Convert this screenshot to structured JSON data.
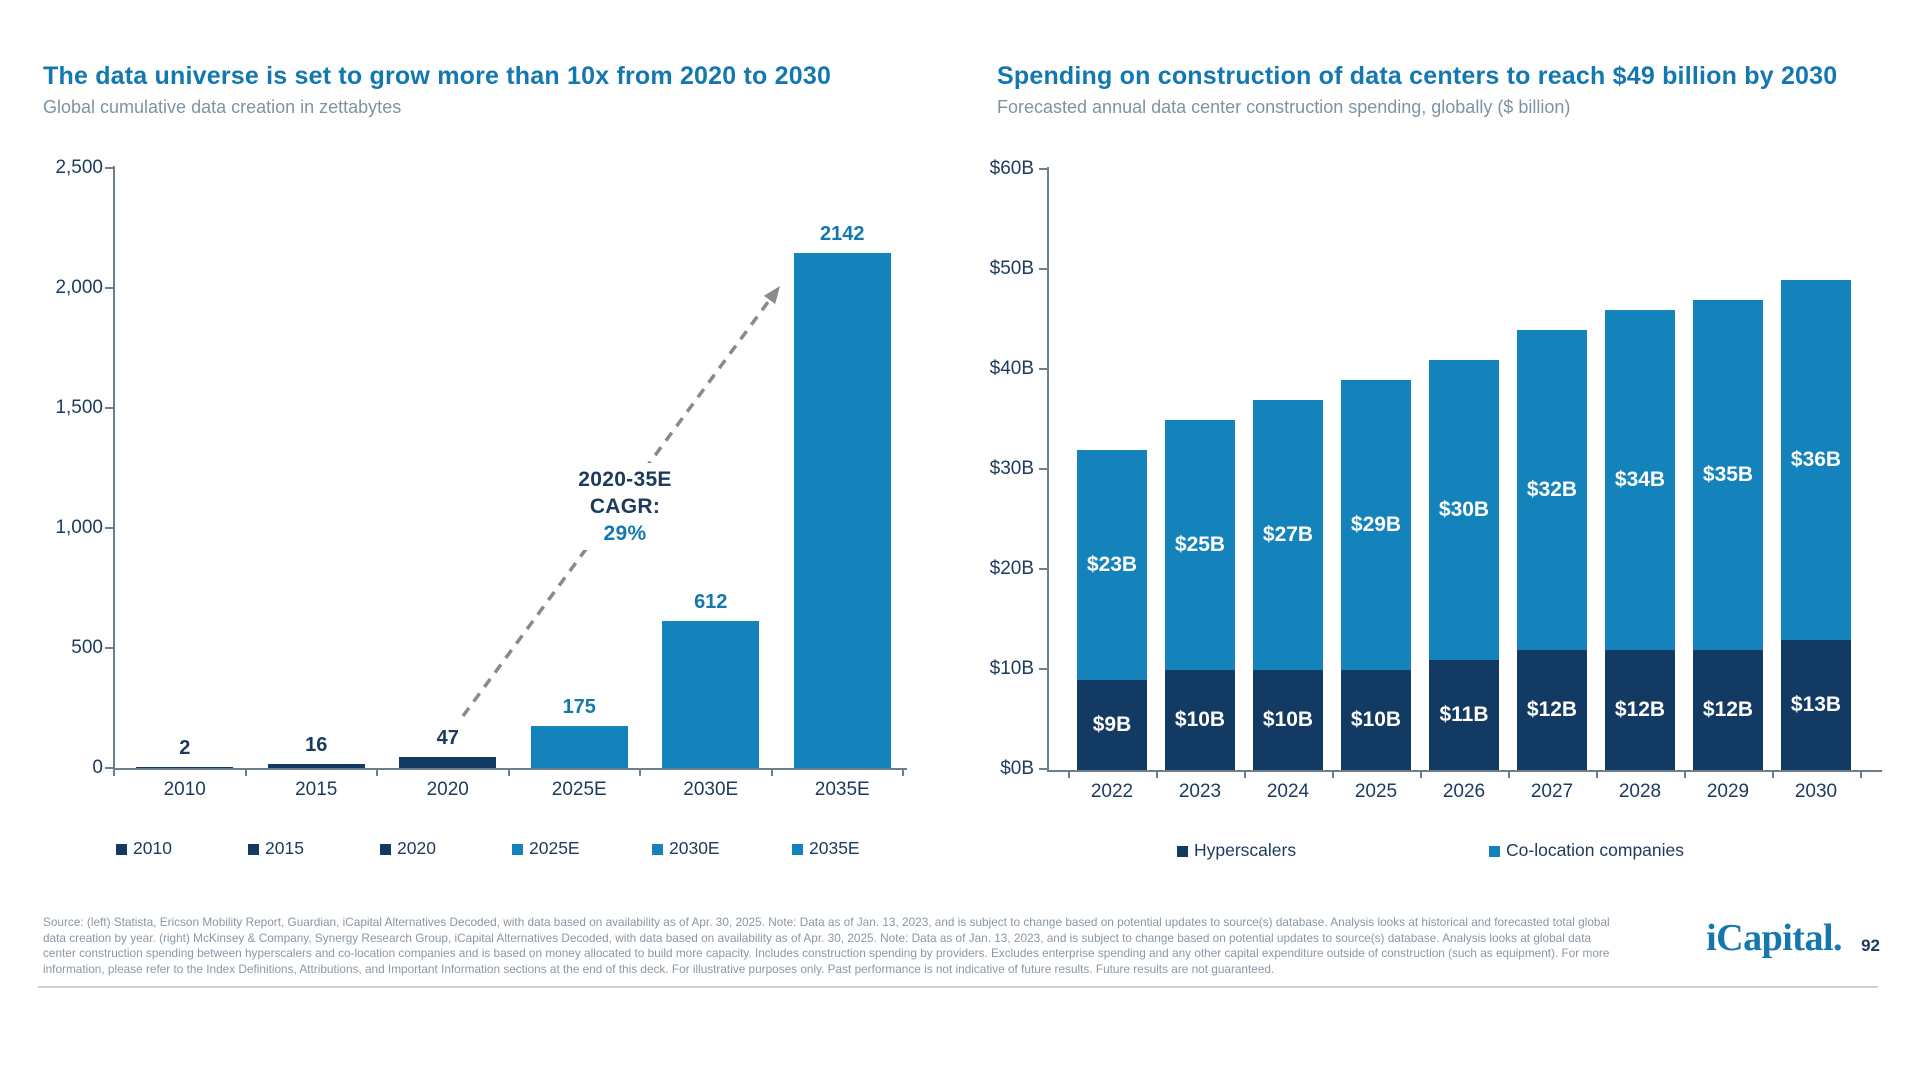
{
  "chart_data": [
    {
      "type": "bar",
      "title": "The data universe is set to grow more than 10x from 2020 to 2030",
      "subtitle": "Global cumulative data creation in zettabytes",
      "categories": [
        "2010",
        "2015",
        "2020",
        "2025E",
        "2030E",
        "2035E"
      ],
      "values": [
        2,
        16,
        47,
        175,
        612,
        2142
      ],
      "value_labels": [
        "2",
        "16",
        "47",
        "175",
        "612",
        "2142"
      ],
      "bar_colors": [
        "#133A63",
        "#133A63",
        "#133A63",
        "#1583BB",
        "#1583BB",
        "#1583BB"
      ],
      "label_colors": [
        "#1C3A5E",
        "#1C3A5E",
        "#1C3A5E",
        "#1478B0",
        "#1478B0",
        "#1478B0"
      ],
      "ylim": [
        0,
        2500
      ],
      "yticks": [
        "2,500",
        "2,000",
        "1,500",
        "1,000",
        "500",
        "0"
      ],
      "grid": false,
      "legend_position": "bottom",
      "legend": [
        {
          "label": "2010",
          "color": "#133A63"
        },
        {
          "label": "2015",
          "color": "#133A63"
        },
        {
          "label": "2020",
          "color": "#133A63"
        },
        {
          "label": "2025E",
          "color": "#1583BB"
        },
        {
          "label": "2030E",
          "color": "#1583BB"
        },
        {
          "label": "2035E",
          "color": "#1583BB"
        }
      ],
      "annotation": {
        "line1": "2020-35E",
        "line2": "CAGR:",
        "value": "29%"
      }
    },
    {
      "type": "stacked-bar",
      "title": "Spending on construction of data centers to reach $49 billion by 2030",
      "subtitle": "Forecasted annual data center construction spending, globally ($ billion)",
      "categories": [
        "2022",
        "2023",
        "2024",
        "2025",
        "2026",
        "2027",
        "2028",
        "2029",
        "2030"
      ],
      "series": [
        {
          "name": "Hyperscalers",
          "color": "#133A63",
          "values": [
            9,
            10,
            10,
            10,
            11,
            12,
            12,
            12,
            13
          ],
          "labels": [
            "$9B",
            "$10B",
            "$10B",
            "$10B",
            "$11B",
            "$12B",
            "$12B",
            "$12B",
            "$13B"
          ]
        },
        {
          "name": "Co-location companies",
          "color": "#1583BB",
          "values": [
            23,
            25,
            27,
            29,
            30,
            32,
            34,
            35,
            36
          ],
          "labels": [
            "$23B",
            "$25B",
            "$27B",
            "$29B",
            "$30B",
            "$32B",
            "$34B",
            "$35B",
            "$36B"
          ]
        }
      ],
      "ylim": [
        0,
        60
      ],
      "yticks": [
        "$60B",
        "$50B",
        "$40B",
        "$30B",
        "$20B",
        "$10B",
        "$0B"
      ],
      "grid": false,
      "legend_position": "bottom"
    }
  ],
  "footer": {
    "source_lines": [
      "Source: (left) Statista, Ericson Mobility Report, Guardian, iCapital Alternatives Decoded, with data based on availability as of Apr. 30, 2025. Note: Data as of Jan. 13, 2023, and is subject to change based on potential updates to source(s) database. Analysis looks at historical and forecasted total global",
      "data creation by year. (right) McKinsey & Company, Synergy Research Group, iCapital Alternatives Decoded, with data based on availability as of Apr. 30, 2025. Note: Data as of Jan. 13, 2023, and is subject to change based on potential updates to source(s) database. Analysis looks at global data",
      "center construction spending between hyperscalers and co-location companies and is based on money allocated to build more capacity. Includes construction spending by providers. Excludes enterprise spending and any other capital expenditure outside of construction (such as equipment). For more",
      "information, please refer to the Index Definitions, Attributions, and Important Information sections at the end of this deck. For illustrative purposes only. Past performance is not indicative of future results. Future results are not guaranteed."
    ],
    "logo_text": "iCapital",
    "logo_dot": ".",
    "page_number": "92"
  }
}
